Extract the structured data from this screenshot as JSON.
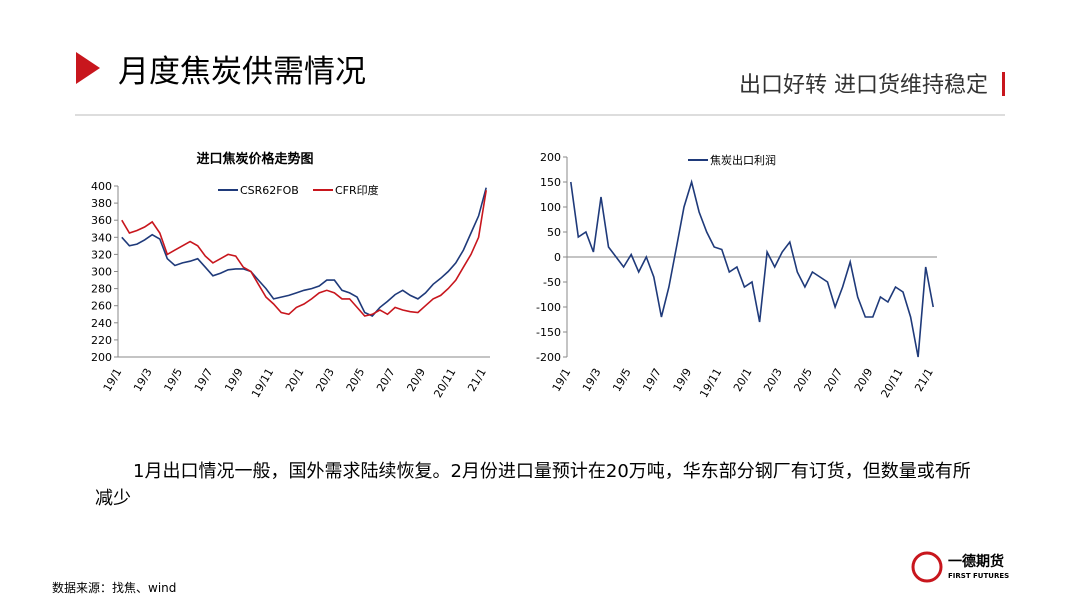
{
  "header": {
    "title": "月度焦炭供需情况",
    "subtitle": "出口好转  进口货维持稳定"
  },
  "body": {
    "text": "1月出口情况一般，国外需求陆续恢复。2月份进口量预计在20万吨，华东部分钢厂有订货，但数量或有所减少"
  },
  "footer": {
    "source": "数据来源：找焦、wind"
  },
  "logo": {
    "name": "一德期货",
    "en": "FIRST FUTURES"
  },
  "chart_data": [
    {
      "type": "line",
      "title": "进口焦炭价格走势图",
      "categories": [
        "19/1",
        null,
        null,
        null,
        "19/3",
        null,
        null,
        null,
        "19/5",
        null,
        null,
        null,
        "19/7",
        null,
        null,
        null,
        "19/9",
        null,
        null,
        null,
        "19/11",
        null,
        null,
        null,
        "20/1",
        null,
        null,
        null,
        "20/3",
        null,
        null,
        null,
        "20/5",
        null,
        null,
        null,
        "20/7",
        null,
        null,
        null,
        "20/9",
        null,
        null,
        null,
        "20/11",
        null,
        null,
        null,
        "21/1"
      ],
      "series": [
        {
          "name": "CSR62FOB",
          "color": "#1f3a7a",
          "values": [
            340,
            330,
            332,
            337,
            343,
            338,
            315,
            307,
            310,
            312,
            315,
            305,
            295,
            298,
            302,
            303,
            303,
            300,
            290,
            280,
            268,
            270,
            272,
            275,
            278,
            280,
            283,
            290,
            290,
            278,
            275,
            270,
            252,
            248,
            258,
            265,
            273,
            278,
            272,
            268,
            275,
            285,
            292,
            300,
            310,
            325,
            345,
            365,
            398
          ]
        },
        {
          "name": "CFR印度",
          "color": "#c8161d",
          "values": [
            360,
            345,
            348,
            352,
            358,
            345,
            320,
            325,
            330,
            335,
            330,
            318,
            310,
            315,
            320,
            318,
            305,
            300,
            285,
            270,
            262,
            252,
            250,
            258,
            262,
            268,
            275,
            278,
            275,
            268,
            268,
            258,
            248,
            250,
            255,
            250,
            258,
            255,
            253,
            252,
            260,
            268,
            272,
            280,
            290,
            305,
            320,
            340,
            395
          ]
        }
      ],
      "ylim": [
        200,
        400
      ],
      "yticks": [
        200,
        220,
        240,
        260,
        280,
        300,
        320,
        340,
        360,
        380,
        400
      ],
      "legend": "top"
    },
    {
      "type": "line",
      "categories": [
        "19/1",
        null,
        null,
        null,
        "19/3",
        null,
        null,
        null,
        "19/5",
        null,
        null,
        null,
        "19/7",
        null,
        null,
        null,
        "19/9",
        null,
        null,
        null,
        "19/11",
        null,
        null,
        null,
        "20/1",
        null,
        null,
        null,
        "20/3",
        null,
        null,
        null,
        "20/5",
        null,
        null,
        null,
        "20/7",
        null,
        null,
        null,
        "20/9",
        null,
        null,
        null,
        "20/11",
        null,
        null,
        null,
        "21/1"
      ],
      "series": [
        {
          "name": "焦炭出口利润",
          "color": "#1f3a7a",
          "values": [
            150,
            40,
            50,
            10,
            120,
            20,
            0,
            -20,
            5,
            -30,
            0,
            -40,
            -120,
            -60,
            20,
            100,
            150,
            90,
            50,
            20,
            15,
            -30,
            -20,
            -60,
            -50,
            -130,
            10,
            -20,
            10,
            30,
            -30,
            -60,
            -30,
            -40,
            -50,
            -100,
            -60,
            -10,
            -80,
            -120,
            -120,
            -80,
            -90,
            -60,
            -70,
            -120,
            -200,
            -20,
            -100
          ]
        }
      ],
      "ylim": [
        -200,
        200
      ],
      "yticks": [
        -200,
        -150,
        -100,
        -50,
        0,
        50,
        100,
        150,
        200
      ],
      "legend": "top"
    }
  ]
}
